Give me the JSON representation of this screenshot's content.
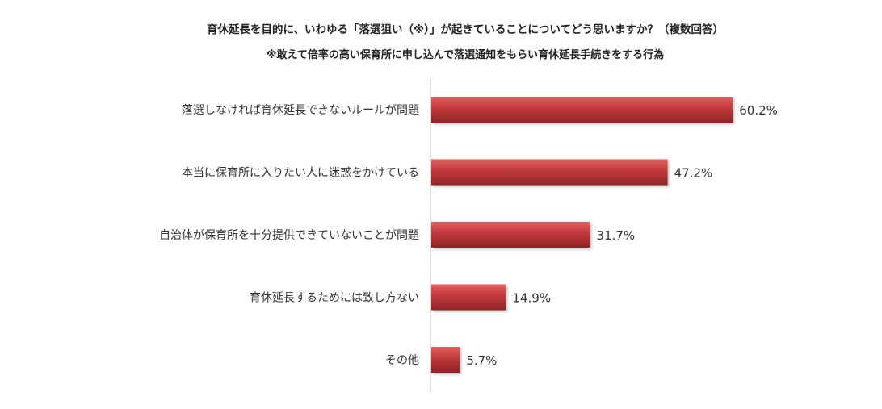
{
  "chart_data": {
    "type": "bar",
    "orientation": "horizontal",
    "title": "育休延長を目的に、いわゆる「落選狙い（※）」が起きていることについてどう思いますか？（複数回答）",
    "subtitle": "※敢えて倍率の高い保育所に申し込んで落選通知をもらい育休延長手続きをする行為",
    "categories": [
      "落選しなければ育休延長できないルールが問題",
      "本当に保育所に入りたい人に迷惑をかけている",
      "自治体が保育所を十分提供できていないことが問題",
      "育休延長するためには致し方ない",
      "その他"
    ],
    "values": [
      60.2,
      47.2,
      31.7,
      14.9,
      5.7
    ],
    "value_labels": [
      "60.2%",
      "47.2%",
      "31.7%",
      "14.9%",
      "5.7%"
    ],
    "unit": "%",
    "xlim": [
      0,
      100
    ],
    "grid": false,
    "legend": "none",
    "bar_color": "#c0393b",
    "bar_highlight": "#e0605f",
    "bar_shadow": "#8e2426"
  }
}
